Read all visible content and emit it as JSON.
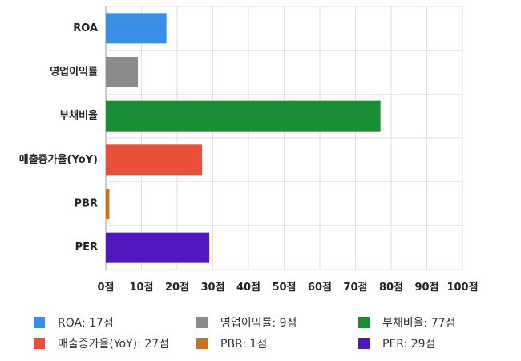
{
  "chart_data": {
    "type": "bar",
    "orientation": "horizontal",
    "categories": [
      "ROA",
      "영업이익률",
      "부채비율",
      "매출증가율(YoY)",
      "PBR",
      "PER"
    ],
    "values": [
      17,
      9,
      77,
      27,
      1,
      29
    ],
    "colors": [
      "#3a8ee6",
      "#8c8c8c",
      "#1a8c34",
      "#e8503a",
      "#c8731f",
      "#5118c0"
    ],
    "xlim": [
      0,
      100
    ],
    "x_ticks": [
      0,
      10,
      20,
      30,
      40,
      50,
      60,
      70,
      80,
      90,
      100
    ],
    "tick_suffix": "점",
    "grid": true,
    "legend_position": "bottom",
    "legend": [
      {
        "label": "ROA: 17점",
        "color": "#3a8ee6"
      },
      {
        "label": "영업이익률: 9점",
        "color": "#8c8c8c"
      },
      {
        "label": "부채비율: 77점",
        "color": "#1a8c34"
      },
      {
        "label": "매출증가율(YoY): 27점",
        "color": "#e8503a"
      },
      {
        "label": "PBR: 1점",
        "color": "#c8731f"
      },
      {
        "label": "PER: 29점",
        "color": "#5118c0"
      }
    ]
  }
}
